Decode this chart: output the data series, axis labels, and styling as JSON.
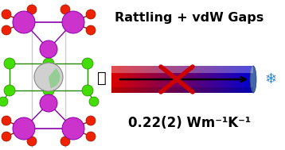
{
  "title_text": "Rattling + vdW Gaps",
  "value_text": "0.22(2) Wm⁻¹K⁻¹",
  "title_fontsize": 11.5,
  "value_fontsize": 12,
  "bg_color": "#ffffff",
  "purple": "#cc33cc",
  "purple_ec": "#8800aa",
  "green": "#44dd00",
  "green_ec": "#228800",
  "red": "#ee2200",
  "red_ec": "#991100",
  "line_color": "#cccccc",
  "cs_face": "#d0d0d0",
  "cs_ec": "#888888",
  "cs_green": "#88cc88"
}
